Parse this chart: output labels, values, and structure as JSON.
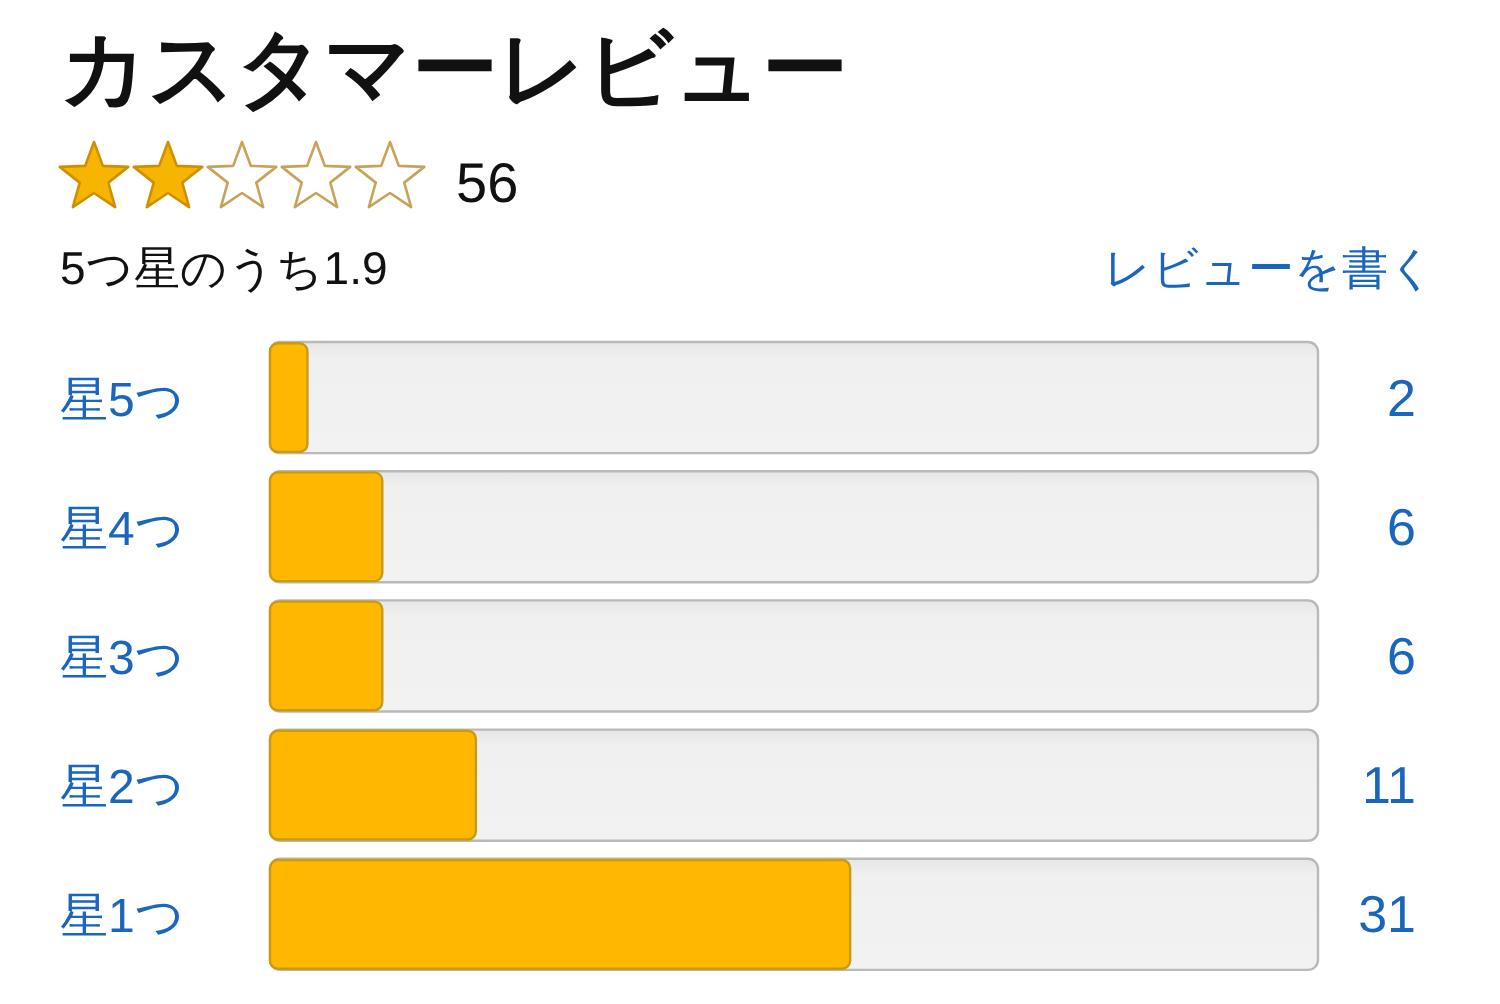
{
  "chart_data": {
    "type": "bar",
    "orientation": "horizontal",
    "title": "カスタマーレビュー",
    "annotations": [
      "56",
      "5つ星のうち1.9",
      "レビューを書く"
    ],
    "categories": [
      "星5つ",
      "星4つ",
      "星3つ",
      "星2つ",
      "星1つ"
    ],
    "values": [
      2,
      6,
      6,
      11,
      31
    ],
    "color": "#ffb700",
    "xlim": [
      0,
      56
    ],
    "tick_labels": "y",
    "data_labels": true
  }
}
